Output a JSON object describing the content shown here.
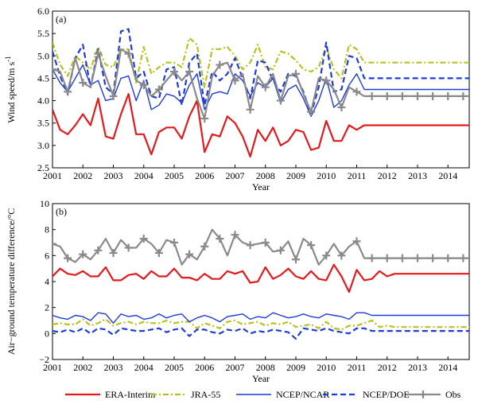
{
  "colors": {
    "era_interim": "#e31a1c",
    "jra55": "#b7c21f",
    "ncep_ncar": "#1f3cd8",
    "ncep_doe": "#1f3cd8",
    "obs": "#8a8a8a"
  },
  "legend": {
    "items": [
      {
        "name": "ERA-Interim",
        "style": "solid",
        "color": "#e31a1c"
      },
      {
        "name": "JRA-55",
        "style": "dashdot",
        "color": "#b7c21f"
      },
      {
        "name": "NCEP/NCAR",
        "style": "solid-thin",
        "color": "#1f3cd8"
      },
      {
        "name": "NCEP/DOE",
        "style": "dashed",
        "color": "#1f3cd8"
      },
      {
        "name": "Obs",
        "style": "marker-plus",
        "color": "#8a8a8a"
      }
    ]
  },
  "chart_data": [
    {
      "type": "line",
      "panel_label": "(a)",
      "xlabel": "Year",
      "ylabel": "Wind speed/m s",
      "ylabel_superscript": "-1",
      "xlim": [
        2001,
        2014.7
      ],
      "ylim": [
        2.5,
        6.0
      ],
      "xticks": [
        2001,
        2002,
        2003,
        2004,
        2005,
        2006,
        2007,
        2008,
        2009,
        2010,
        2011,
        2012,
        2013,
        2014
      ],
      "yticks": [
        2.5,
        3.0,
        3.5,
        4.0,
        4.5,
        5.0,
        5.5,
        6.0
      ],
      "ytick_labels": [
        "2.5",
        "3.0",
        "3.5",
        "4.0",
        "4.5",
        "5.0",
        "5.5",
        "6.0"
      ],
      "x": [
        2001.0,
        2001.25,
        2001.5,
        2001.75,
        2002.0,
        2002.25,
        2002.5,
        2002.75,
        2003.0,
        2003.25,
        2003.5,
        2003.75,
        2004.0,
        2004.25,
        2004.5,
        2004.75,
        2005.0,
        2005.25,
        2005.5,
        2005.75,
        2006.0,
        2006.25,
        2006.5,
        2006.75,
        2007.0,
        2007.25,
        2007.5,
        2007.75,
        2008.0,
        2008.25,
        2008.5,
        2008.75,
        2009.0,
        2009.25,
        2009.5,
        2009.75,
        2010.0,
        2010.25,
        2010.5,
        2010.75,
        2011.0,
        2011.25,
        2011.5,
        2011.75,
        2012.0,
        2012.25,
        2012.5,
        2012.75,
        2013.0,
        2013.25,
        2013.5,
        2013.75,
        2014.0,
        2014.25,
        2014.5,
        2014.7
      ],
      "series": [
        {
          "name": "ERA-Interim",
          "key": "era_interim",
          "style": "solid",
          "values": [
            3.8,
            3.35,
            3.25,
            3.45,
            3.7,
            3.45,
            4.05,
            3.2,
            3.15,
            3.7,
            4.15,
            3.25,
            3.25,
            2.8,
            3.3,
            3.4,
            3.4,
            3.15,
            3.65,
            4.0,
            2.85,
            3.25,
            3.2,
            3.65,
            3.5,
            3.2,
            2.75,
            3.35,
            3.1,
            3.4,
            3.0,
            3.1,
            3.35,
            3.3,
            2.9,
            2.95,
            3.55,
            3.1,
            3.1,
            3.45,
            3.35,
            3.45,
            3.45,
            3.45,
            3.45,
            3.45,
            3.45,
            3.45,
            3.45,
            3.45,
            3.45,
            3.45,
            3.45,
            3.45,
            3.45,
            3.45
          ]
        },
        {
          "name": "JRA-55",
          "key": "jra55",
          "style": "dashdot",
          "values": [
            5.3,
            4.8,
            4.55,
            5.0,
            4.85,
            4.7,
            5.2,
            4.8,
            4.75,
            5.15,
            5.15,
            4.4,
            5.2,
            4.6,
            4.75,
            4.85,
            4.85,
            4.75,
            5.4,
            5.25,
            4.3,
            5.15,
            5.15,
            5.2,
            5.0,
            4.7,
            4.85,
            5.25,
            4.75,
            4.7,
            5.1,
            5.05,
            4.9,
            4.7,
            4.65,
            4.75,
            5.2,
            4.7,
            4.5,
            5.25,
            5.15,
            4.85,
            4.85,
            4.85,
            4.85,
            4.85,
            4.85,
            4.85,
            4.85,
            4.85,
            4.85,
            4.85,
            4.85,
            4.85,
            4.85,
            4.85
          ]
        },
        {
          "name": "NCEP/NCAR",
          "key": "ncep_ncar",
          "style": "solid-thin",
          "values": [
            4.7,
            4.4,
            4.2,
            4.5,
            4.8,
            4.35,
            4.45,
            4.0,
            4.05,
            4.5,
            4.55,
            4.0,
            4.45,
            3.8,
            3.9,
            4.15,
            4.1,
            3.95,
            4.35,
            4.6,
            3.8,
            4.15,
            4.2,
            4.15,
            4.6,
            4.45,
            4.1,
            4.4,
            4.3,
            4.5,
            3.95,
            4.25,
            4.35,
            4.05,
            3.65,
            4.0,
            4.5,
            3.85,
            4.0,
            4.35,
            4.6,
            4.25,
            4.25,
            4.25,
            4.25,
            4.25,
            4.25,
            4.25,
            4.25,
            4.25,
            4.25,
            4.25,
            4.25,
            4.25,
            4.25,
            4.25
          ]
        },
        {
          "name": "NCEP/DOE",
          "key": "ncep_doe",
          "style": "dashed",
          "values": [
            5.1,
            4.55,
            4.15,
            4.95,
            5.25,
            4.3,
            5.15,
            4.3,
            4.15,
            5.55,
            5.6,
            4.5,
            4.65,
            4.1,
            4.05,
            4.7,
            4.75,
            3.9,
            4.85,
            5.05,
            3.9,
            4.65,
            4.45,
            4.6,
            4.95,
            4.5,
            4.05,
            4.9,
            4.85,
            4.45,
            4.2,
            4.6,
            4.55,
            4.2,
            3.7,
            4.3,
            5.3,
            4.2,
            4.25,
            5.0,
            4.95,
            4.5,
            4.5,
            4.5,
            4.5,
            4.5,
            4.5,
            4.5,
            4.5,
            4.5,
            4.5,
            4.5,
            4.5,
            4.5,
            4.5,
            4.5
          ]
        },
        {
          "name": "Obs",
          "key": "obs",
          "style": "marker-plus",
          "values": [
            4.7,
            4.65,
            4.2,
            4.95,
            4.4,
            4.3,
            5.05,
            4.55,
            4.1,
            5.15,
            5.05,
            4.45,
            4.35,
            4.1,
            4.25,
            4.45,
            4.65,
            4.45,
            4.65,
            4.05,
            3.6,
            4.55,
            4.8,
            4.85,
            4.45,
            4.6,
            3.8,
            4.55,
            4.3,
            4.6,
            4.0,
            4.55,
            4.6,
            4.15,
            3.75,
            4.5,
            4.45,
            4.25,
            3.85,
            4.3,
            4.2,
            4.1,
            4.1,
            4.1,
            4.1,
            4.1,
            4.1,
            4.1,
            4.1,
            4.1,
            4.1,
            4.1,
            4.1,
            4.1,
            4.1,
            4.1
          ]
        }
      ]
    },
    {
      "type": "line",
      "panel_label": "(b)",
      "xlabel": "Year",
      "ylabel": "Air−ground temperature difference/°C",
      "xlim": [
        2001,
        2014.7
      ],
      "ylim": [
        -2,
        10
      ],
      "xticks": [
        2001,
        2002,
        2003,
        2004,
        2005,
        2006,
        2007,
        2008,
        2009,
        2010,
        2011,
        2012,
        2013,
        2014
      ],
      "yticks": [
        -2,
        0,
        2,
        4,
        6,
        8,
        10
      ],
      "ytick_labels": [
        "−2",
        "0",
        "2",
        "4",
        "6",
        "8",
        "10"
      ],
      "x": [
        2001.0,
        2001.25,
        2001.5,
        2001.75,
        2002.0,
        2002.25,
        2002.5,
        2002.75,
        2003.0,
        2003.25,
        2003.5,
        2003.75,
        2004.0,
        2004.25,
        2004.5,
        2004.75,
        2005.0,
        2005.25,
        2005.5,
        2005.75,
        2006.0,
        2006.25,
        2006.5,
        2006.75,
        2007.0,
        2007.25,
        2007.5,
        2007.75,
        2008.0,
        2008.25,
        2008.5,
        2008.75,
        2009.0,
        2009.25,
        2009.5,
        2009.75,
        2010.0,
        2010.25,
        2010.5,
        2010.75,
        2011.0,
        2011.25,
        2011.5,
        2011.75,
        2012.0,
        2012.25,
        2012.5,
        2012.75,
        2013.0,
        2013.25,
        2013.5,
        2013.75,
        2014.0,
        2014.25,
        2014.5,
        2014.7
      ],
      "series": [
        {
          "name": "ERA-Interim",
          "key": "era_interim",
          "style": "solid",
          "values": [
            4.4,
            5.0,
            4.6,
            4.5,
            4.8,
            4.4,
            4.4,
            5.1,
            4.1,
            4.1,
            4.5,
            4.6,
            4.2,
            4.8,
            4.4,
            4.4,
            5.0,
            4.3,
            4.3,
            4.1,
            4.6,
            4.2,
            4.2,
            4.8,
            4.6,
            4.8,
            3.9,
            4.0,
            5.1,
            4.2,
            4.5,
            5.0,
            4.4,
            4.2,
            4.8,
            4.2,
            4.1,
            5.3,
            4.4,
            3.2,
            4.9,
            4.1,
            4.2,
            4.8,
            4.4,
            4.6,
            4.6,
            4.6,
            4.6,
            4.6,
            4.6,
            4.6,
            4.6,
            4.6,
            4.6,
            4.6
          ]
        },
        {
          "name": "JRA-55",
          "key": "jra55",
          "style": "dashdot",
          "values": [
            0.7,
            0.8,
            0.7,
            0.7,
            1.1,
            0.6,
            0.8,
            1.1,
            0.6,
            0.8,
            0.9,
            0.7,
            0.9,
            0.8,
            0.8,
            1.0,
            0.8,
            0.9,
            0.9,
            0.4,
            0.8,
            0.6,
            0.4,
            0.9,
            1.0,
            0.7,
            0.8,
            0.9,
            0.6,
            0.8,
            0.7,
            0.9,
            0.5,
            0.6,
            0.7,
            0.4,
            0.9,
            0.4,
            0.3,
            0.6,
            0.6,
            0.8,
            1.0,
            0.5,
            0.6,
            0.5,
            0.5,
            0.5,
            0.5,
            0.5,
            0.5,
            0.5,
            0.5,
            0.5,
            0.5,
            0.5
          ]
        },
        {
          "name": "NCEP/NCAR",
          "key": "ncep_ncar",
          "style": "solid-thin",
          "values": [
            1.4,
            1.2,
            1.1,
            1.4,
            1.3,
            1.0,
            1.6,
            1.5,
            0.8,
            1.5,
            1.3,
            1.4,
            1.1,
            1.2,
            1.5,
            1.2,
            1.4,
            1.5,
            0.9,
            1.2,
            1.4,
            1.2,
            0.9,
            1.3,
            1.4,
            1.5,
            1.1,
            1.3,
            1.2,
            1.6,
            1.4,
            1.2,
            1.3,
            1.5,
            1.3,
            1.2,
            1.5,
            1.4,
            1.3,
            1.1,
            1.6,
            1.6,
            1.4,
            1.4,
            1.4,
            1.4,
            1.4,
            1.4,
            1.4,
            1.4,
            1.4,
            1.4,
            1.4,
            1.4,
            1.4,
            1.4
          ]
        },
        {
          "name": "NCEP/DOE",
          "key": "ncep_doe",
          "style": "dashed",
          "values": [
            0.2,
            0.1,
            0.3,
            0.1,
            0.4,
            0.0,
            0.4,
            0.3,
            -0.1,
            0.4,
            0.3,
            0.2,
            0.2,
            0.3,
            0.4,
            0.1,
            0.3,
            0.4,
            -0.2,
            0.3,
            0.3,
            0.1,
            0.0,
            0.3,
            0.2,
            0.4,
            0.0,
            0.2,
            0.1,
            0.3,
            0.2,
            0.1,
            -0.4,
            0.4,
            0.3,
            0.2,
            0.4,
            0.2,
            0.1,
            0.0,
            0.4,
            0.4,
            0.2,
            0.2,
            0.2,
            0.2,
            0.2,
            0.2,
            0.2,
            0.2,
            0.2,
            0.2,
            0.2,
            0.2,
            0.2,
            0.2
          ]
        },
        {
          "name": "Obs",
          "key": "obs",
          "style": "marker-plus",
          "values": [
            6.9,
            6.7,
            5.8,
            5.5,
            6.1,
            5.7,
            6.4,
            7.3,
            6.2,
            7.2,
            6.6,
            6.6,
            7.3,
            6.9,
            6.2,
            7.2,
            7.0,
            5.3,
            6.1,
            5.7,
            6.7,
            8.0,
            7.3,
            6.0,
            7.6,
            7.0,
            6.8,
            6.9,
            7.0,
            6.3,
            6.4,
            7.1,
            5.7,
            7.3,
            6.8,
            5.3,
            6.0,
            6.9,
            6.0,
            6.7,
            7.1,
            5.8,
            5.8,
            5.8,
            5.8,
            5.8,
            5.8,
            5.8,
            5.8,
            5.8,
            5.8,
            5.8,
            5.8,
            5.8,
            5.8,
            5.8
          ]
        }
      ]
    }
  ]
}
